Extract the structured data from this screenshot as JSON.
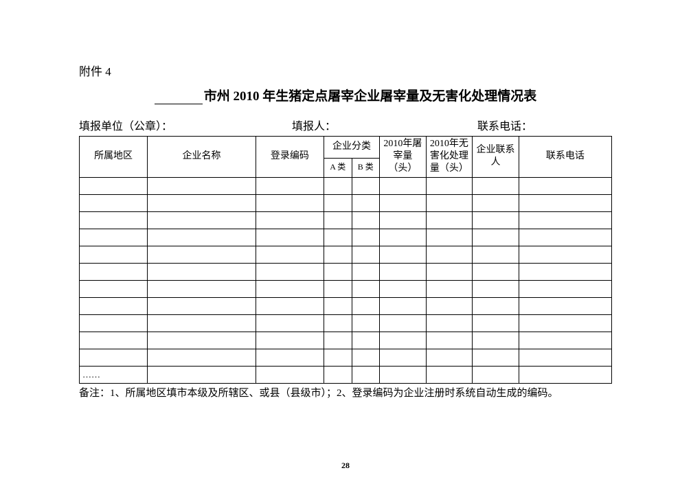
{
  "attachment_label": "附件 4",
  "title_prefix_blank": "",
  "title_text": "市州 2010 年生猪定点屠宰企业屠宰量及无害化处理情况表",
  "meta": {
    "reporting_unit_label": "填报单位（公章）：",
    "reporter_label": "填报人：",
    "phone_label": "联系电话："
  },
  "table": {
    "columns": {
      "region": "所属地区",
      "enterprise_name": "企业名称",
      "login_code": "登录编码",
      "enterprise_category": "企业分类",
      "category_a": "A 类",
      "category_b": "B 类",
      "slaughter_2010": "2010年屠宰量（头）",
      "harmless_2010": "2010年无害化处理量（头）",
      "enterprise_contact": "企业联系人",
      "contact_phone": "联系电话"
    },
    "column_widths": {
      "region": 88,
      "enterprise_name": 140,
      "login_code": 88,
      "category_a": 36,
      "category_b": 36,
      "slaughter_2010": 60,
      "harmless_2010": 60,
      "enterprise_contact": 60,
      "contact_phone": 120
    },
    "header_row_height_top": 38,
    "header_row_height_sub": 28,
    "data_row_height": 25,
    "data_row_count": 12,
    "ellipsis_text": "……",
    "border_color": "#000000",
    "background_color": "#ffffff",
    "text_color": "#000000",
    "header_fontsize": 14,
    "subheader_fontsize": 12,
    "cell_fontsize": 13,
    "rows": [
      [
        "",
        "",
        "",
        "",
        "",
        "",
        "",
        "",
        ""
      ],
      [
        "",
        "",
        "",
        "",
        "",
        "",
        "",
        "",
        ""
      ],
      [
        "",
        "",
        "",
        "",
        "",
        "",
        "",
        "",
        ""
      ],
      [
        "",
        "",
        "",
        "",
        "",
        "",
        "",
        "",
        ""
      ],
      [
        "",
        "",
        "",
        "",
        "",
        "",
        "",
        "",
        ""
      ],
      [
        "",
        "",
        "",
        "",
        "",
        "",
        "",
        "",
        ""
      ],
      [
        "",
        "",
        "",
        "",
        "",
        "",
        "",
        "",
        ""
      ],
      [
        "",
        "",
        "",
        "",
        "",
        "",
        "",
        "",
        ""
      ],
      [
        "",
        "",
        "",
        "",
        "",
        "",
        "",
        "",
        ""
      ],
      [
        "",
        "",
        "",
        "",
        "",
        "",
        "",
        "",
        ""
      ],
      [
        "",
        "",
        "",
        "",
        "",
        "",
        "",
        "",
        ""
      ],
      [
        "……",
        "",
        "",
        "",
        "",
        "",
        "",
        "",
        ""
      ]
    ]
  },
  "footnote": "备注：1、所属地区填市本级及所辖区、或县（县级市）；2、登录编码为企业注册时系统自动生成的编码。",
  "page_number": "28"
}
